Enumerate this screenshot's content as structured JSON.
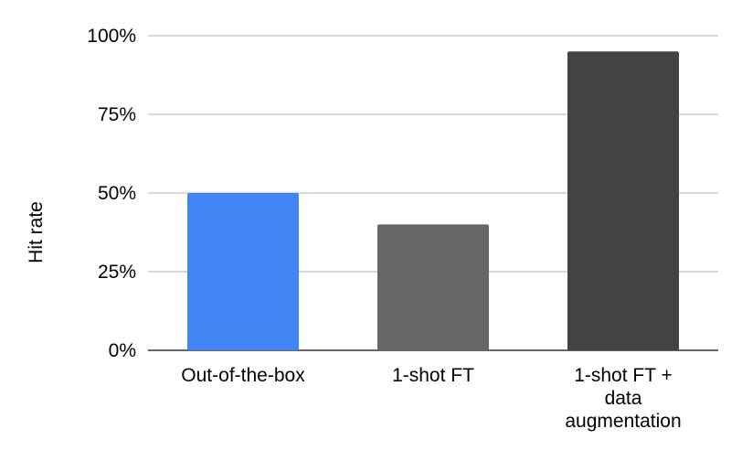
{
  "chart_data": {
    "type": "bar",
    "title": "",
    "xlabel": "",
    "ylabel": "Hit rate",
    "ylim": [
      0,
      100
    ],
    "yticks": [
      {
        "value": 0,
        "label": "0%"
      },
      {
        "value": 25,
        "label": "25%"
      },
      {
        "value": 50,
        "label": "50%"
      },
      {
        "value": 75,
        "label": "75%"
      },
      {
        "value": 100,
        "label": "100%"
      }
    ],
    "categories": [
      [
        "Out-of-the-box"
      ],
      [
        "1-shot FT"
      ],
      [
        "1-shot FT +",
        "data",
        "augmentation"
      ]
    ],
    "values": [
      50,
      40,
      95
    ],
    "colors": [
      "#4285f4",
      "#666666",
      "#434343"
    ],
    "grid": true,
    "legend": "none"
  }
}
